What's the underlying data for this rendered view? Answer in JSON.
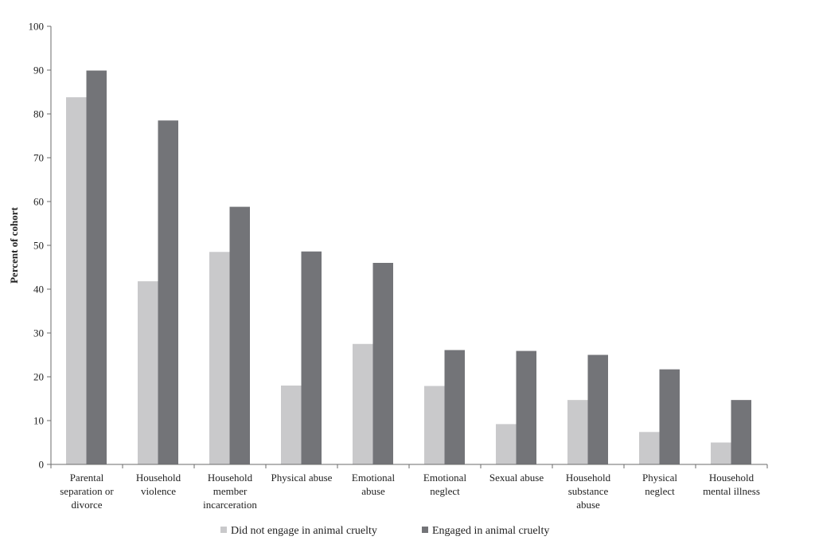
{
  "chart_data": {
    "type": "bar",
    "title": "",
    "xlabel": "",
    "ylabel": "Percent of cohort",
    "ylim": [
      0,
      100
    ],
    "yticks": [
      0,
      10,
      20,
      30,
      40,
      50,
      60,
      70,
      80,
      90,
      100
    ],
    "grid": false,
    "legend_position": "bottom",
    "categories": [
      [
        "Parental",
        "separation or",
        "divorce"
      ],
      [
        "Household",
        "violence"
      ],
      [
        "Household",
        "member",
        "incarceration"
      ],
      [
        "Physical abuse"
      ],
      [
        "Emotional",
        "abuse"
      ],
      [
        "Emotional",
        "neglect"
      ],
      [
        "Sexual abuse"
      ],
      [
        "Household",
        "substance",
        "abuse"
      ],
      [
        "Physical",
        "neglect"
      ],
      [
        "Household",
        "mental illness"
      ]
    ],
    "series": [
      {
        "name": "Did not engage in animal cruelty",
        "color": "#c9c9cb",
        "values": [
          83.8,
          41.8,
          48.5,
          18.0,
          27.5,
          17.9,
          9.2,
          14.7,
          7.4,
          5.0
        ]
      },
      {
        "name": "Engaged in animal cruelty",
        "color": "#737478",
        "values": [
          89.9,
          78.5,
          58.8,
          48.6,
          46.0,
          26.1,
          25.9,
          25.0,
          21.7,
          14.7
        ]
      }
    ]
  }
}
